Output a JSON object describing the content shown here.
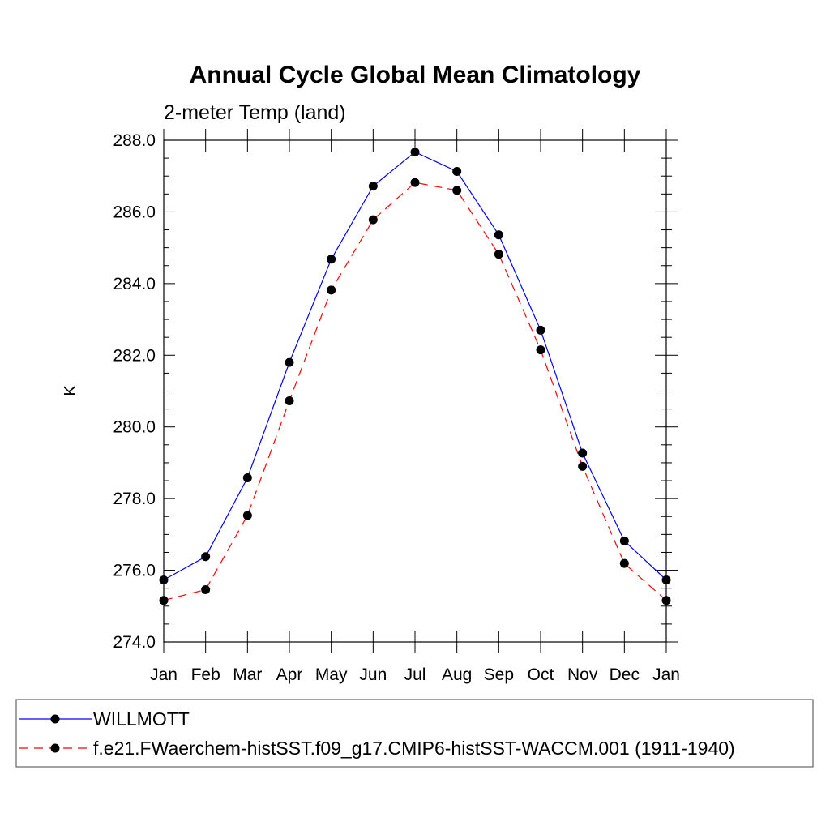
{
  "chart_data": {
    "type": "line",
    "title": "Annual Cycle Global Mean Climatology",
    "subtitle": "2-meter Temp (land)",
    "xlabel": "",
    "ylabel": "K",
    "categories": [
      "Jan",
      "Feb",
      "Mar",
      "Apr",
      "May",
      "Jun",
      "Jul",
      "Aug",
      "Sep",
      "Oct",
      "Nov",
      "Dec",
      "Jan"
    ],
    "ylim": [
      274.0,
      288.0
    ],
    "yticks": [
      "274.0",
      "276.0",
      "278.0",
      "280.0",
      "282.0",
      "284.0",
      "286.0",
      "288.0"
    ],
    "grid": false,
    "legend_position": "bottom",
    "series": [
      {
        "name": "WILLMOTT",
        "color": "#0000ff",
        "line_style": "solid",
        "values": [
          275.73,
          276.38,
          278.58,
          281.8,
          284.68,
          286.72,
          287.67,
          287.13,
          285.36,
          282.7,
          279.27,
          276.82,
          275.73
        ]
      },
      {
        "name": "f.e21.FWaerchem-histSST.f09_g17.CMIP6-histSST-WACCM.001 (1911-1940)",
        "color": "#ff0000",
        "line_style": "dashed",
        "values": [
          275.16,
          275.46,
          277.53,
          280.73,
          283.82,
          285.78,
          286.82,
          286.6,
          284.82,
          282.15,
          278.9,
          276.19,
          275.16
        ]
      }
    ]
  }
}
